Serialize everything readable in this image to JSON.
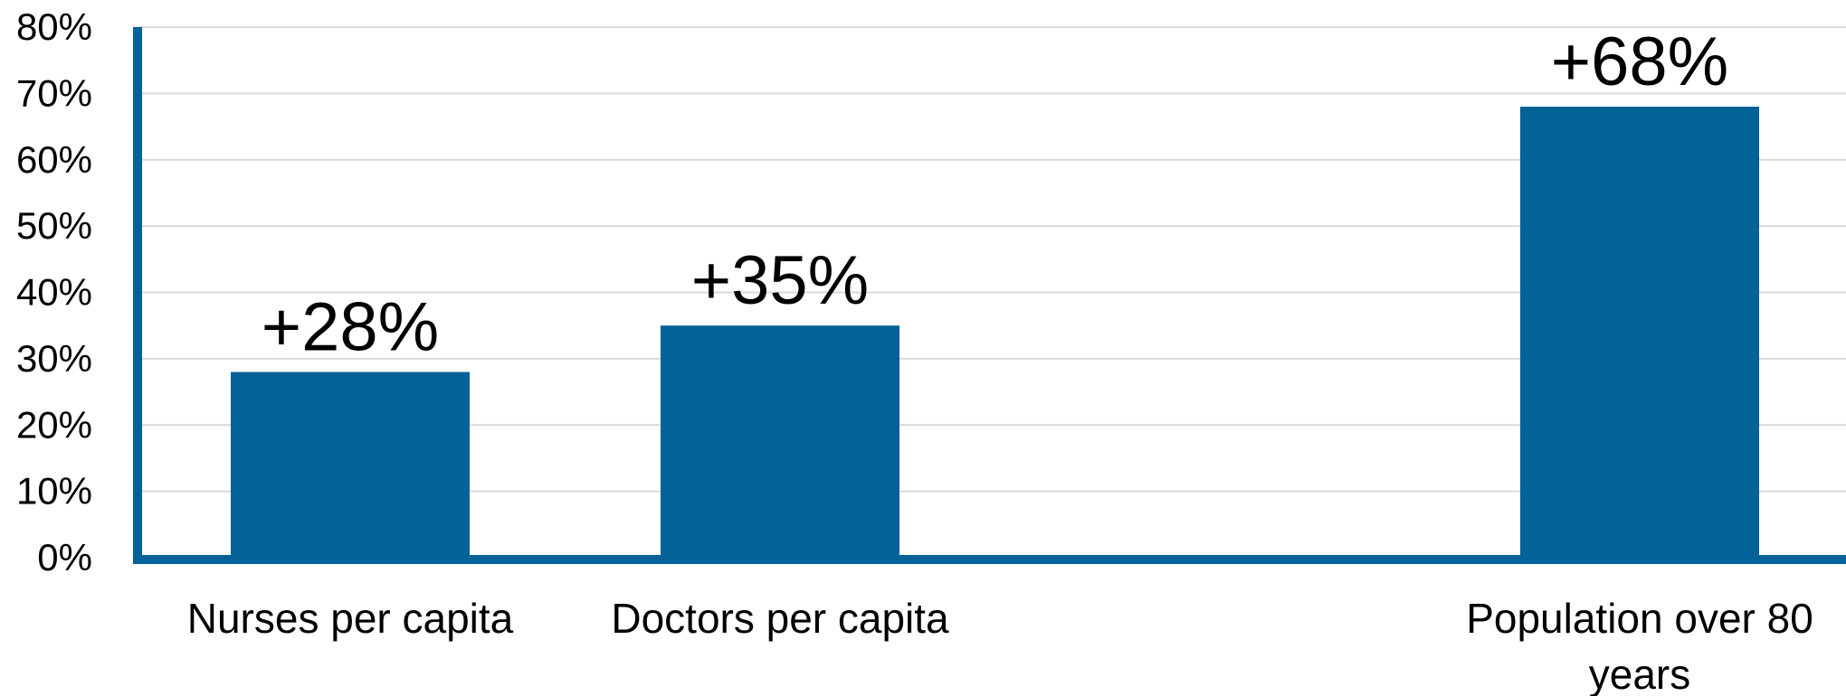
{
  "chart_data": {
    "type": "bar",
    "categories": [
      "Nurses per capita",
      "Doctors per capita",
      "",
      "Population over 80 years"
    ],
    "category_lines": [
      [
        "Nurses per capita"
      ],
      [
        "Doctors per capita"
      ],
      [],
      [
        "Population over 80",
        "years"
      ]
    ],
    "values": [
      28,
      35,
      null,
      68
    ],
    "data_labels": [
      "+28%",
      "+35%",
      "",
      "+68%"
    ],
    "ylim": [
      0,
      80
    ],
    "y_ticks": [
      0,
      10,
      20,
      30,
      40,
      50,
      60,
      70,
      80
    ],
    "y_tick_labels": [
      "0%",
      "10%",
      "20%",
      "30%",
      "40%",
      "50%",
      "60%",
      "70%",
      "80%"
    ],
    "grid": true,
    "colors": {
      "bar": "#036298",
      "axis": "#036298",
      "grid": "#d9d9d9"
    }
  }
}
